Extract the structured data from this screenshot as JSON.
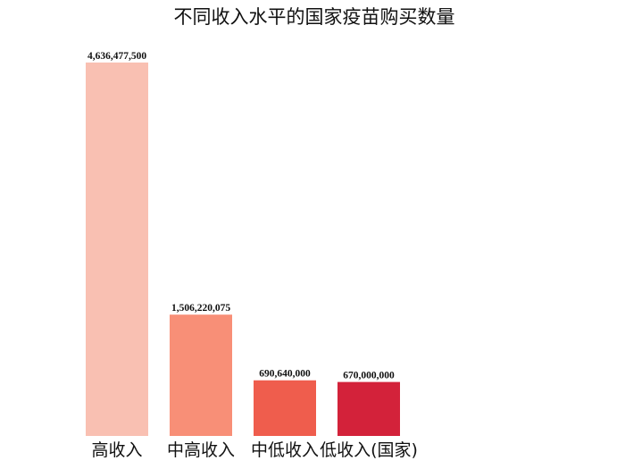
{
  "chart_data": {
    "type": "bar",
    "title": "不同收入水平的国家疫苗购买数量",
    "categories": [
      "高收入",
      "中高收入",
      "中低收入",
      "低收入(国家)"
    ],
    "values": [
      4636477500,
      1506220075,
      690640000,
      670000000
    ],
    "value_labels": [
      "4,636,477,500",
      "1,506,220,075",
      "690,640,000",
      "670,000,000"
    ],
    "colors": [
      "#f9c0b2",
      "#f88f77",
      "#ef5d4d",
      "#d3223a"
    ],
    "ylim": [
      0,
      4636477500
    ],
    "grid": false,
    "legend": "none",
    "xlabel": "",
    "ylabel": ""
  }
}
